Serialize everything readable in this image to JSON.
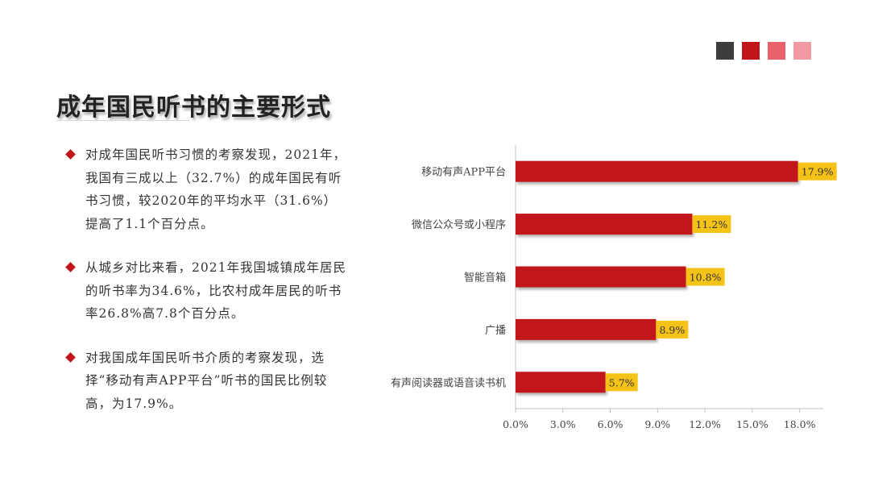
{
  "palette": {
    "swatches": [
      "#3d3d3d",
      "#c0161b",
      "#e8616b",
      "#f29aa3"
    ],
    "bar": "#c0161b",
    "label_bg": "#f5c218"
  },
  "page": {
    "title": "成年国民听书的主要形式"
  },
  "bullets": [
    {
      "text": "对成年国民听书习惯的考察发现，2021年，我国有三成以上（32.7%）的成年国民有听书习惯，较2020年的平均水平（31.6%）提高了1.1个百分点。"
    },
    {
      "text": "从城乡对比来看，2021年我国城镇成年居民的听书率为34.6%，比农村成年居民的听书率26.8%高7.8个百分点。"
    },
    {
      "text": "对我国成年国民听书介质的考察发现，选择“移动有声APP平台”听书的国民比例较高，为17.9%。"
    }
  ],
  "chart_data": {
    "type": "bar",
    "orientation": "horizontal",
    "categories": [
      "移动有声APP平台",
      "微信公众号或小程序",
      "智能音箱",
      "广播",
      "有声阅读器或语音读书机"
    ],
    "values": [
      17.9,
      11.2,
      10.8,
      8.9,
      5.7
    ],
    "value_labels": [
      "17.9%",
      "11.2%",
      "10.8%",
      "8.9%",
      "5.7%"
    ],
    "xlim": [
      0,
      19.5
    ],
    "xticks": [
      0,
      3,
      6,
      9,
      12,
      15,
      18
    ],
    "xtick_labels": [
      "0.0%",
      "3.0%",
      "6.0%",
      "9.0%",
      "12.0%",
      "15.0%",
      "18.0%"
    ],
    "grid": false,
    "legend": "none"
  }
}
